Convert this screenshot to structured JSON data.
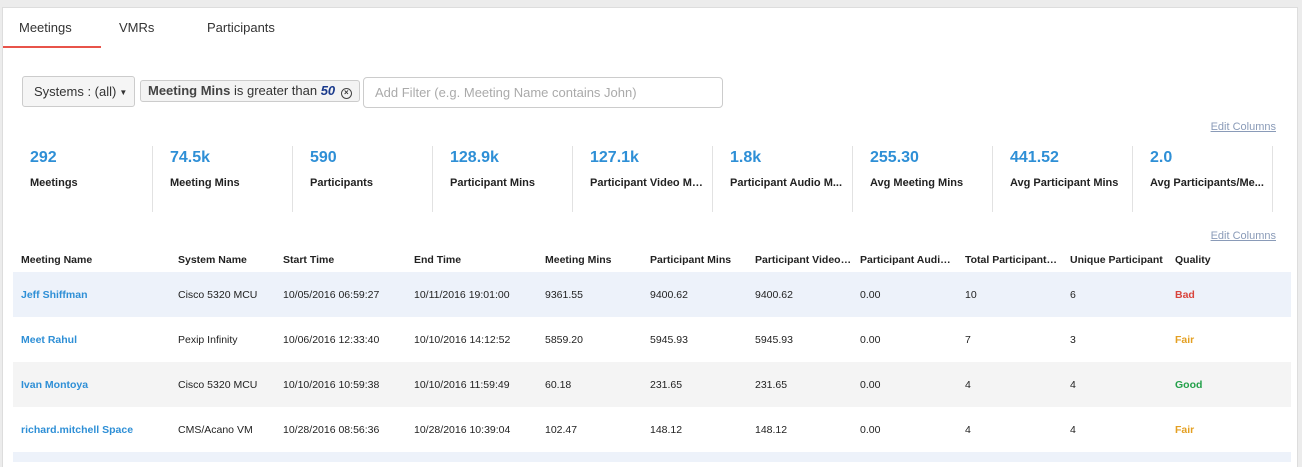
{
  "tabs": [
    "Meetings",
    "VMRs",
    "Participants"
  ],
  "filters": {
    "systems_label": "Systems : (all)",
    "chip_field": "Meeting Mins",
    "chip_op": "is greater than",
    "chip_value": "50",
    "input_placeholder": "Add Filter (e.g. Meeting Name contains John)"
  },
  "edit_columns": "Edit Columns",
  "stats": [
    {
      "value": "292",
      "label": "Meetings"
    },
    {
      "value": "74.5k",
      "label": "Meeting Mins"
    },
    {
      "value": "590",
      "label": "Participants"
    },
    {
      "value": "128.9k",
      "label": "Participant Mins"
    },
    {
      "value": "127.1k",
      "label": "Participant Video Mins"
    },
    {
      "value": "1.8k",
      "label": "Participant Audio M..."
    },
    {
      "value": "255.30",
      "label": "Avg Meeting Mins"
    },
    {
      "value": "441.52",
      "label": "Avg Participant Mins"
    },
    {
      "value": "2.0",
      "label": "Avg Participants/Me..."
    }
  ],
  "table": {
    "headers": [
      "Meeting Name",
      "System Name",
      "Start Time",
      "End Time",
      "Meeting Mins",
      "Participant Mins",
      "Participant Video M...",
      "Participant Audio M...",
      "Total Participants",
      "Unique Participant",
      "Quality"
    ],
    "rows": [
      [
        "Jeff Shiffman",
        "Cisco 5320 MCU",
        "10/05/2016 06:59:27",
        "10/11/2016 19:01:00",
        "9361.55",
        "9400.62",
        "9400.62",
        "0.00",
        "10",
        "6",
        "Bad"
      ],
      [
        "Meet Rahul",
        "Pexip Infinity",
        "10/06/2016 12:33:40",
        "10/10/2016 14:12:52",
        "5859.20",
        "5945.93",
        "5945.93",
        "0.00",
        "7",
        "3",
        "Fair"
      ],
      [
        "Ivan Montoya",
        "Cisco 5320 MCU",
        "10/10/2016 10:59:38",
        "10/10/2016 11:59:49",
        "60.18",
        "231.65",
        "231.65",
        "0.00",
        "4",
        "4",
        "Good"
      ],
      [
        "richard.mitchell Space",
        "CMS/Acano VM",
        "10/28/2016 08:56:36",
        "10/28/2016 10:39:04",
        "102.47",
        "148.12",
        "148.12",
        "0.00",
        "4",
        "4",
        "Fair"
      ]
    ]
  },
  "colors": {
    "accent": "#2e8fd6",
    "tab_underline": "#e8534a",
    "bad": "#d9443c",
    "fair": "#e4a023",
    "good": "#23a04a"
  }
}
